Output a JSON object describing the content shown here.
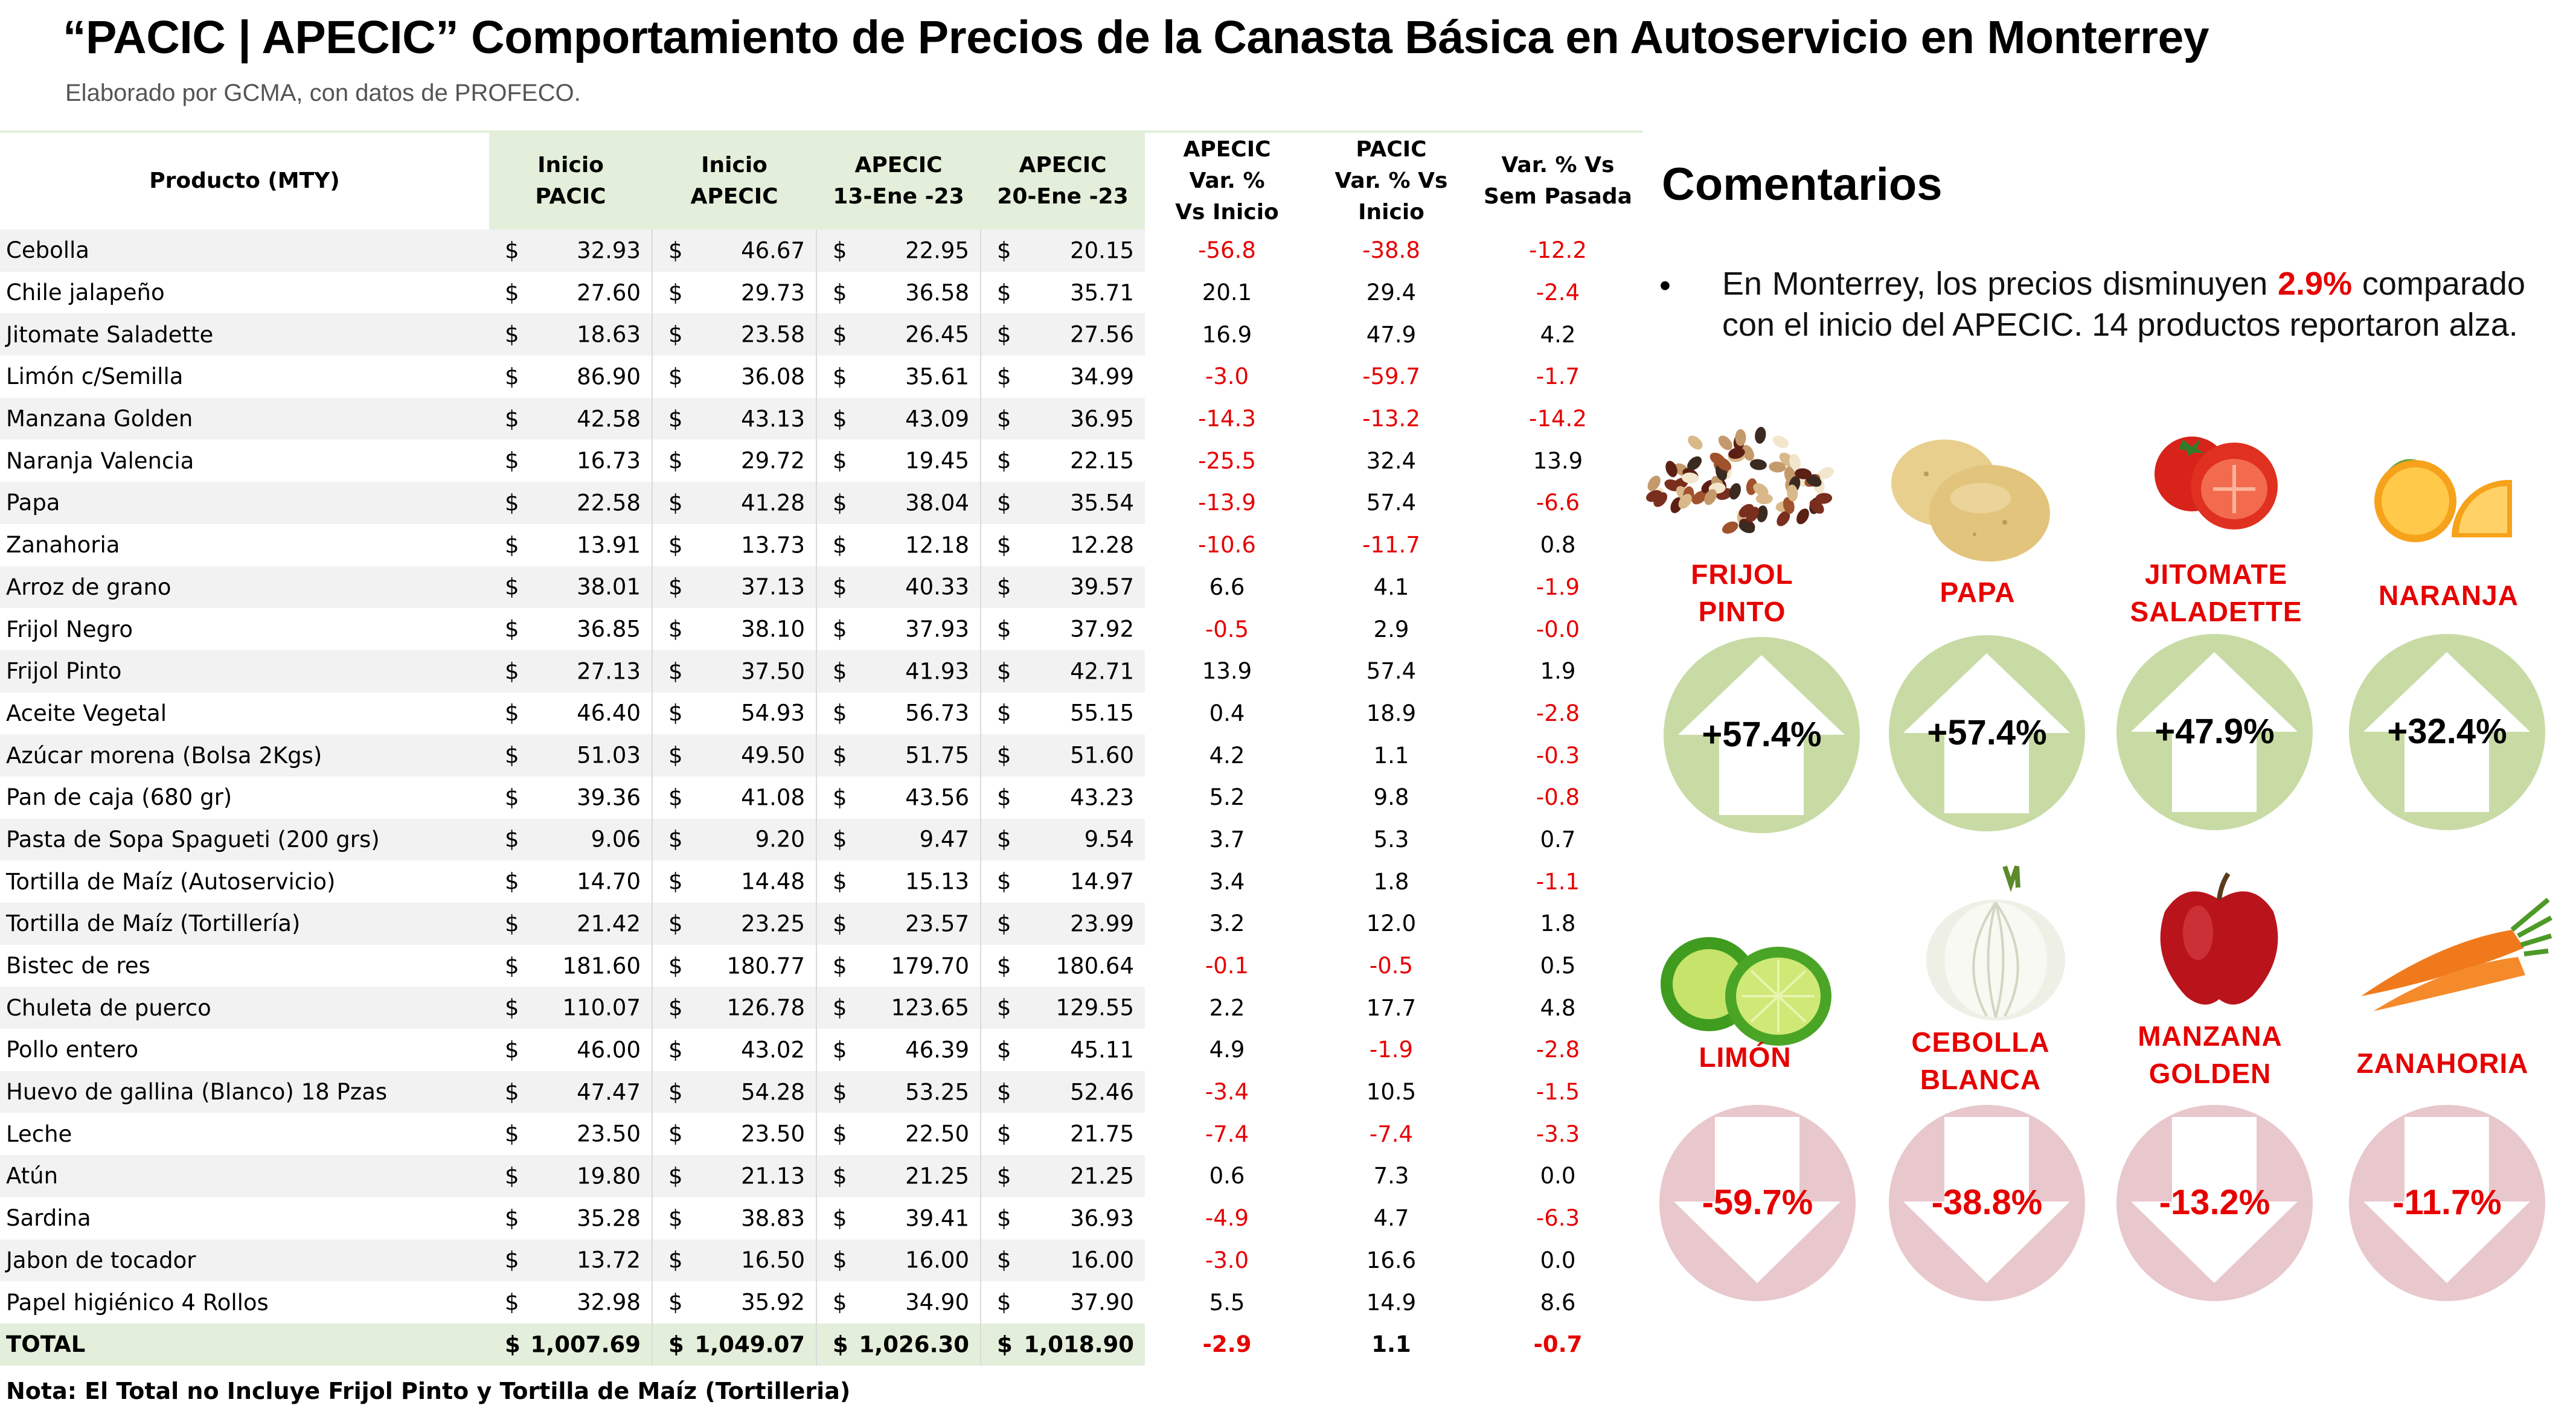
{
  "title": "“PACIC | APECIC” Comportamiento de Precios de la Canasta Básica en Autoservicio en Monterrey",
  "subtitle": "Elaborado por GCMA, con datos de PROFECO.",
  "table": {
    "headers": {
      "producto": "Producto (MTY)",
      "c1": [
        "Inicio",
        "PACIC"
      ],
      "c2": [
        "Inicio",
        "APECIC"
      ],
      "c3": [
        "APECIC",
        "13-Ene -23"
      ],
      "c4": [
        "APECIC",
        "20-Ene -23"
      ],
      "c5": [
        "APECIC",
        "Var. %",
        "Vs  Inicio"
      ],
      "c6": [
        "PACIC",
        "Var. % Vs",
        "Inicio"
      ],
      "c7": [
        "Var. % Vs",
        "Sem Pasada"
      ]
    },
    "currency": "$",
    "rows": [
      {
        "name": "Cebolla",
        "p1": "32.93",
        "p2": "46.67",
        "p3": "22.95",
        "p4": "20.15",
        "v1": "-56.8",
        "v2": "-38.8",
        "v3": "-12.2"
      },
      {
        "name": "Chile jalapeño",
        "p1": "27.60",
        "p2": "29.73",
        "p3": "36.58",
        "p4": "35.71",
        "v1": "20.1",
        "v2": "29.4",
        "v3": "-2.4"
      },
      {
        "name": "Jitomate Saladette",
        "p1": "18.63",
        "p2": "23.58",
        "p3": "26.45",
        "p4": "27.56",
        "v1": "16.9",
        "v2": "47.9",
        "v3": "4.2"
      },
      {
        "name": "Limón c/Semilla",
        "p1": "86.90",
        "p2": "36.08",
        "p3": "35.61",
        "p4": "34.99",
        "v1": "-3.0",
        "v2": "-59.7",
        "v3": "-1.7"
      },
      {
        "name": "Manzana Golden",
        "p1": "42.58",
        "p2": "43.13",
        "p3": "43.09",
        "p4": "36.95",
        "v1": "-14.3",
        "v2": "-13.2",
        "v3": "-14.2"
      },
      {
        "name": "Naranja Valencia",
        "p1": "16.73",
        "p2": "29.72",
        "p3": "19.45",
        "p4": "22.15",
        "v1": "-25.5",
        "v2": "32.4",
        "v3": "13.9"
      },
      {
        "name": "Papa",
        "p1": "22.58",
        "p2": "41.28",
        "p3": "38.04",
        "p4": "35.54",
        "v1": "-13.9",
        "v2": "57.4",
        "v3": "-6.6"
      },
      {
        "name": "Zanahoria",
        "p1": "13.91",
        "p2": "13.73",
        "p3": "12.18",
        "p4": "12.28",
        "v1": "-10.6",
        "v2": "-11.7",
        "v3": "0.8"
      },
      {
        "name": "Arroz de grano",
        "p1": "38.01",
        "p2": "37.13",
        "p3": "40.33",
        "p4": "39.57",
        "v1": "6.6",
        "v2": "4.1",
        "v3": "-1.9"
      },
      {
        "name": "Frijol Negro",
        "p1": "36.85",
        "p2": "38.10",
        "p3": "37.93",
        "p4": "37.92",
        "v1": "-0.5",
        "v2": "2.9",
        "v3": "-0.0"
      },
      {
        "name": "Frijol Pinto",
        "p1": "27.13",
        "p2": "37.50",
        "p3": "41.93",
        "p4": "42.71",
        "v1": "13.9",
        "v2": "57.4",
        "v3": "1.9"
      },
      {
        "name": "Aceite Vegetal",
        "p1": "46.40",
        "p2": "54.93",
        "p3": "56.73",
        "p4": "55.15",
        "v1": "0.4",
        "v2": "18.9",
        "v3": "-2.8"
      },
      {
        "name": "Azúcar morena (Bolsa 2Kgs)",
        "p1": "51.03",
        "p2": "49.50",
        "p3": "51.75",
        "p4": "51.60",
        "v1": "4.2",
        "v2": "1.1",
        "v3": "-0.3"
      },
      {
        "name": "Pan de caja (680 gr)",
        "p1": "39.36",
        "p2": "41.08",
        "p3": "43.56",
        "p4": "43.23",
        "v1": "5.2",
        "v2": "9.8",
        "v3": "-0.8"
      },
      {
        "name": "Pasta de Sopa Spagueti (200 grs)",
        "p1": "9.06",
        "p2": "9.20",
        "p3": "9.47",
        "p4": "9.54",
        "v1": "3.7",
        "v2": "5.3",
        "v3": "0.7"
      },
      {
        "name": "Tortilla de Maíz (Autoservicio)",
        "p1": "14.70",
        "p2": "14.48",
        "p3": "15.13",
        "p4": "14.97",
        "v1": "3.4",
        "v2": "1.8",
        "v3": "-1.1"
      },
      {
        "name": "Tortilla de Maíz (Tortillería)",
        "p1": "21.42",
        "p2": "23.25",
        "p3": "23.57",
        "p4": "23.99",
        "v1": "3.2",
        "v2": "12.0",
        "v3": "1.8"
      },
      {
        "name": " Bistec de res",
        "p1": "181.60",
        "p2": "180.77",
        "p3": "179.70",
        "p4": "180.64",
        "v1": "-0.1",
        "v2": "-0.5",
        "v3": "0.5"
      },
      {
        "name": " Chuleta de puerco",
        "p1": "110.07",
        "p2": "126.78",
        "p3": "123.65",
        "p4": "129.55",
        "v1": "2.2",
        "v2": "17.7",
        "v3": "4.8"
      },
      {
        "name": " Pollo entero",
        "p1": "46.00",
        "p2": "43.02",
        "p3": "46.39",
        "p4": "45.11",
        "v1": "4.9",
        "v2": "-1.9",
        "v3": "-2.8"
      },
      {
        "name": " Huevo de gallina (Blanco) 18 Pzas",
        "p1": "47.47",
        "p2": "54.28",
        "p3": "53.25",
        "p4": "52.46",
        "v1": "-3.4",
        "v2": "10.5",
        "v3": "-1.5"
      },
      {
        "name": " Leche",
        "p1": "23.50",
        "p2": "23.50",
        "p3": "22.50",
        "p4": "21.75",
        "v1": "-7.4",
        "v2": "-7.4",
        "v3": "-3.3"
      },
      {
        "name": " Atún",
        "p1": "19.80",
        "p2": "21.13",
        "p3": "21.25",
        "p4": "21.25",
        "v1": "0.6",
        "v2": "7.3",
        "v3": "0.0"
      },
      {
        "name": " Sardina",
        "p1": "35.28",
        "p2": "38.83",
        "p3": "39.41",
        "p4": "36.93",
        "v1": "-4.9",
        "v2": "4.7",
        "v3": "-6.3"
      },
      {
        "name": " Jabon de tocador",
        "p1": "13.72",
        "p2": "16.50",
        "p3": "16.00",
        "p4": "16.00",
        "v1": "-3.0",
        "v2": "16.6",
        "v3": "0.0"
      },
      {
        "name": " Papel higiénico 4 Rollos",
        "p1": "32.98",
        "p2": "35.92",
        "p3": "34.90",
        "p4": "37.90",
        "v1": "5.5",
        "v2": "14.9",
        "v3": "8.6"
      }
    ],
    "total": {
      "name": "TOTAL",
      "p1": "1,007.69",
      "p2": "1,049.07",
      "p3": "1,026.30",
      "p4": "1,018.90",
      "v1": "-2.9",
      "v2": "1.1",
      "v3": "-0.7"
    }
  },
  "note": "Nota: El Total no Incluye Frijol Pinto y Tortilla de Maíz (Tortilleria)",
  "comments": {
    "title": "Comentarios",
    "bullet": "•",
    "text_before": "En Monterrey, los precios disminuyen",
    "highlight": "2.9%",
    "text_after": "comparado con el inicio del APECIC. 14 productos reportaron alza."
  },
  "colors": {
    "negative": "#e60000",
    "up_circle": "#c8dba5",
    "down_circle": "#e8c8cc",
    "header_green": "#e3efda"
  },
  "increases": [
    {
      "label": [
        "FRIJOL",
        "PINTO"
      ],
      "value": "+57.4%",
      "icon": "beans-icon"
    },
    {
      "label": [
        "PAPA"
      ],
      "value": "+57.4%",
      "icon": "potato-icon"
    },
    {
      "label": [
        "JITOMATE",
        "SALADETTE"
      ],
      "value": "+47.9%",
      "icon": "tomato-icon"
    },
    {
      "label": [
        "NARANJA"
      ],
      "value": "+32.4%",
      "icon": "orange-icon"
    }
  ],
  "decreases": [
    {
      "label": [
        "LIMÓN"
      ],
      "value": "-59.7%",
      "icon": "lime-icon"
    },
    {
      "label": [
        "CEBOLLA",
        "BLANCA"
      ],
      "value": "-38.8%",
      "icon": "onion-icon"
    },
    {
      "label": [
        "MANZANA",
        "GOLDEN"
      ],
      "value": "-13.2%",
      "icon": "apple-icon"
    },
    {
      "label": [
        "ZANAHORIA"
      ],
      "value": "-11.7%",
      "icon": "carrot-icon"
    }
  ]
}
